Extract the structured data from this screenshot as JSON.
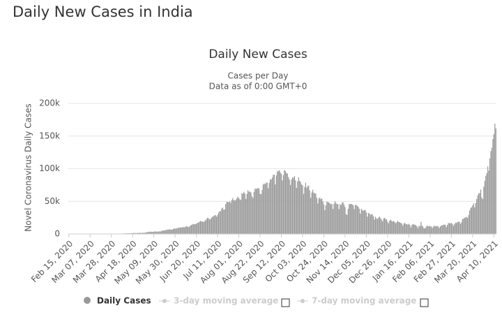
{
  "header": {
    "title": "Daily New Cases in India"
  },
  "chart_data": {
    "type": "bar",
    "title": "Daily New Cases",
    "subtitle": "Cases per Day",
    "note": "Data as of 0:00 GMT+0",
    "y_label": "Novel Coronavirus Daily Cases",
    "categories": [
      "Feb 15, 2020",
      null,
      null,
      null,
      null,
      null,
      null,
      null,
      null,
      null,
      null,
      null,
      null,
      null,
      null,
      null,
      null,
      null,
      null,
      null,
      null,
      "Mar 07, 2020",
      null,
      null,
      null,
      null,
      null,
      null,
      null,
      null,
      null,
      null,
      null,
      null,
      null,
      null,
      null,
      null,
      null,
      null,
      null,
      null,
      "Mar 28, 2020",
      null,
      null,
      null,
      null,
      null,
      null,
      null,
      null,
      null,
      null,
      null,
      null,
      null,
      null,
      null,
      null,
      null,
      null,
      null,
      null,
      "Apr 18, 2020",
      null,
      null,
      null,
      null,
      null,
      null,
      null,
      null,
      null,
      null,
      null,
      null,
      null,
      null,
      null,
      null,
      null,
      null,
      null,
      null,
      "May 09, 2020",
      null,
      null,
      null,
      null,
      null,
      null,
      null,
      null,
      null,
      null,
      null,
      null,
      null,
      null,
      null,
      null,
      null,
      null,
      null,
      null,
      "May 30, 2020",
      null,
      null,
      null,
      null,
      null,
      null,
      null,
      null,
      null,
      null,
      null,
      null,
      null,
      null,
      null,
      null,
      null,
      null,
      null,
      null,
      "Jun 20, 2020",
      null,
      null,
      null,
      null,
      null,
      null,
      null,
      null,
      null,
      null,
      null,
      null,
      null,
      null,
      null,
      null,
      null,
      null,
      null,
      null,
      "Jul 11, 2020",
      null,
      null,
      null,
      null,
      null,
      null,
      null,
      null,
      null,
      null,
      null,
      null,
      null,
      null,
      null,
      null,
      null,
      null,
      null,
      null,
      "Aug 01, 2020",
      null,
      null,
      null,
      null,
      null,
      null,
      null,
      null,
      null,
      null,
      null,
      null,
      null,
      null,
      null,
      null,
      null,
      null,
      null,
      null,
      "Aug 22, 2020",
      null,
      null,
      null,
      null,
      null,
      null,
      null,
      null,
      null,
      null,
      null,
      null,
      null,
      null,
      null,
      null,
      null,
      null,
      null,
      null,
      "Sep 12, 2020",
      null,
      null,
      null,
      null,
      null,
      null,
      null,
      null,
      null,
      null,
      null,
      null,
      null,
      null,
      null,
      null,
      null,
      null,
      null,
      null,
      "Oct 03, 2020",
      null,
      null,
      null,
      null,
      null,
      null,
      null,
      null,
      null,
      null,
      null,
      null,
      null,
      null,
      null,
      null,
      null,
      null,
      null,
      null,
      "Oct 24, 2020",
      null,
      null,
      null,
      null,
      null,
      null,
      null,
      null,
      null,
      null,
      null,
      null,
      null,
      null,
      null,
      null,
      null,
      null,
      null,
      null,
      "Nov 14, 2020",
      null,
      null,
      null,
      null,
      null,
      null,
      null,
      null,
      null,
      null,
      null,
      null,
      null,
      null,
      null,
      null,
      null,
      null,
      null,
      null,
      "Dec 05, 2020",
      null,
      null,
      null,
      null,
      null,
      null,
      null,
      null,
      null,
      null,
      null,
      null,
      null,
      null,
      null,
      null,
      null,
      null,
      null,
      null,
      "Dec 26, 2020",
      null,
      null,
      null,
      null,
      null,
      null,
      null,
      null,
      null,
      null,
      null,
      null,
      null,
      null,
      null,
      null,
      null,
      null,
      null,
      null,
      "Jan 16, 2021",
      null,
      null,
      null,
      null,
      null,
      null,
      null,
      null,
      null,
      null,
      null,
      null,
      null,
      null,
      null,
      null,
      null,
      null,
      null,
      null,
      "Feb 06, 2021",
      null,
      null,
      null,
      null,
      null,
      null,
      null,
      null,
      null,
      null,
      null,
      null,
      null,
      null,
      null,
      null,
      null,
      null,
      null,
      null,
      "Feb 27, 2021",
      null,
      null,
      null,
      null,
      null,
      null,
      null,
      null,
      null,
      null,
      null,
      null,
      null,
      null,
      null,
      null,
      null,
      null,
      null,
      null,
      "Mar 20, 2021",
      null,
      null,
      null,
      null,
      null,
      null,
      null,
      null,
      null,
      null,
      null,
      null,
      null,
      null,
      null,
      null,
      null,
      null,
      null,
      null,
      "Apr 10, 2021",
      null,
      null
    ],
    "series": [
      {
        "name": "Daily Cases",
        "color": "#999999",
        "values": [
          0,
          0,
          0,
          0,
          0,
          0,
          0,
          0,
          0,
          0,
          0,
          0,
          0,
          0,
          0,
          0,
          3,
          1,
          22,
          2,
          1,
          3,
          5,
          9,
          15,
          8,
          10,
          12,
          7,
          26,
          13,
          23,
          23,
          29,
          45,
          52,
          63,
          80,
          72,
          84,
          85,
          141,
          128,
          110,
          113,
          232,
          424,
          486,
          560,
          579,
          609,
          484,
          573,
          565,
          813,
          871,
          854,
          758,
          1243,
          1031,
          886,
          1061,
          922,
          1370,
          1580,
          1239,
          1537,
          1292,
          1667,
          1408,
          1835,
          1607,
          1561,
          1873,
          1738,
          1801,
          2396,
          2564,
          2952,
          3656,
          2971,
          3602,
          3344,
          3339,
          3175,
          4311,
          3592,
          3562,
          3726,
          3991,
          3808,
          3970,
          5242,
          4970,
          5611,
          5609,
          6088,
          6654,
          6767,
          6977,
          7113,
          6414,
          6566,
          7468,
          8380,
          8171,
          8392,
          8909,
          9304,
          9851,
          9887,
          9987,
          9971,
          10882,
          9987,
          10956,
          11929,
          11502,
          10667,
          10974,
          12881,
          13586,
          14516,
          15413,
          14831,
          14933,
          15968,
          16922,
          17296,
          18552,
          19906,
          19459,
          18653,
          18522,
          19148,
          20903,
          22771,
          24850,
          24248,
          22252,
          22752,
          24879,
          26506,
          27114,
          28637,
          28701,
          26506,
          29429,
          32695,
          34956,
          34884,
          38902,
          40425,
          37148,
          37724,
          45720,
          49310,
          48916,
          48661,
          49931,
          47704,
          52123,
          55078,
          52050,
          50972,
          52509,
          54735,
          57118,
          55079,
          52972,
          52050,
          62538,
          61537,
          64399,
          62064,
          53601,
          61252,
          66999,
          64553,
          65002,
          63490,
          57981,
          55079,
          64531,
          69652,
          68898,
          69878,
          70488,
          69239,
          61408,
          60975,
          67151,
          75760,
          77266,
          76472,
          78761,
          78512,
          69921,
          78357,
          83883,
          83341,
          86432,
          90632,
          90802,
          75809,
          89706,
          95735,
          96551,
          97570,
          94372,
          92071,
          81911,
          90123,
          97894,
          96424,
          93337,
          92605,
          86961,
          83347,
          75083,
          83347,
          86508,
          86052,
          88600,
          82170,
          70589,
          80472,
          86821,
          81484,
          79476,
          75829,
          74442,
          61267,
          72049,
          78524,
          70496,
          73272,
          74383,
          66732,
          55342,
          63509,
          67708,
          63371,
          62212,
          61871,
          55722,
          46790,
          54044,
          55839,
          53370,
          54366,
          50129,
          45148,
          36470,
          43893,
          49881,
          48648,
          48268,
          46963,
          45230,
          46254,
          38310,
          46253,
          50210,
          47638,
          45674,
          45903,
          38073,
          45576,
          44281,
          47905,
          48648,
          44879,
          41100,
          30548,
          29163,
          38617,
          45576,
          45882,
          46232,
          45209,
          44059,
          37975,
          44376,
          44489,
          43082,
          41810,
          38772,
          31118,
          38772,
          36604,
          35551,
          36595,
          36652,
          32981,
          26567,
          32080,
          31522,
          29398,
          30006,
          30254,
          27071,
          22065,
          26382,
          24010,
          22890,
          25152,
          26624,
          24337,
          22065,
          19556,
          23950,
          24712,
          23067,
          22272,
          18732,
          16432,
          20549,
          21822,
          20035,
          19078,
          20035,
          18177,
          16505,
          18088,
          20346,
          18139,
          18222,
          16946,
          15968,
          12584,
          15968,
          16946,
          15158,
          15144,
          14256,
          15588,
          13788,
          10064,
          13823,
          15223,
          14545,
          14256,
          13203,
          11666,
          9102,
          12689,
          11666,
          18855,
          13083,
          11039,
          8635,
          8635,
          11039,
          12899,
          11610,
          12408,
          11713,
          11831,
          9110,
          11067,
          12923,
          11610,
          12143,
          12194,
          11649,
          9121,
          11610,
          12881,
          13193,
          13993,
          14264,
          14199,
          10584,
          13742,
          16738,
          16577,
          16488,
          16752,
          15510,
          12286,
          14989,
          17407,
          16838,
          18327,
          18711,
          18599,
          15388,
          17921,
          22854,
          23285,
          24882,
          25320,
          26291,
          24492,
          28903,
          35871,
          39726,
          40953,
          43846,
          46951,
          40715,
          47262,
          53476,
          59118,
          62258,
          62714,
          68020,
          56211,
          53480,
          72330,
          81466,
          89129,
          93249,
          103558,
          96982,
          115736,
          126789,
          131968,
          145384,
          152879,
          168912,
          161736
        ]
      }
    ],
    "inactive_legend": [
      "3-day moving average",
      "7-day moving average"
    ],
    "ylim": [
      0,
      200000
    ],
    "yticks": [
      0,
      {
        "value": 50000,
        "label": "50k"
      },
      {
        "value": 100000,
        "label": "100k"
      },
      {
        "value": 150000,
        "label": "150k"
      },
      {
        "value": 200000,
        "label": "200k"
      }
    ],
    "grid": true
  }
}
